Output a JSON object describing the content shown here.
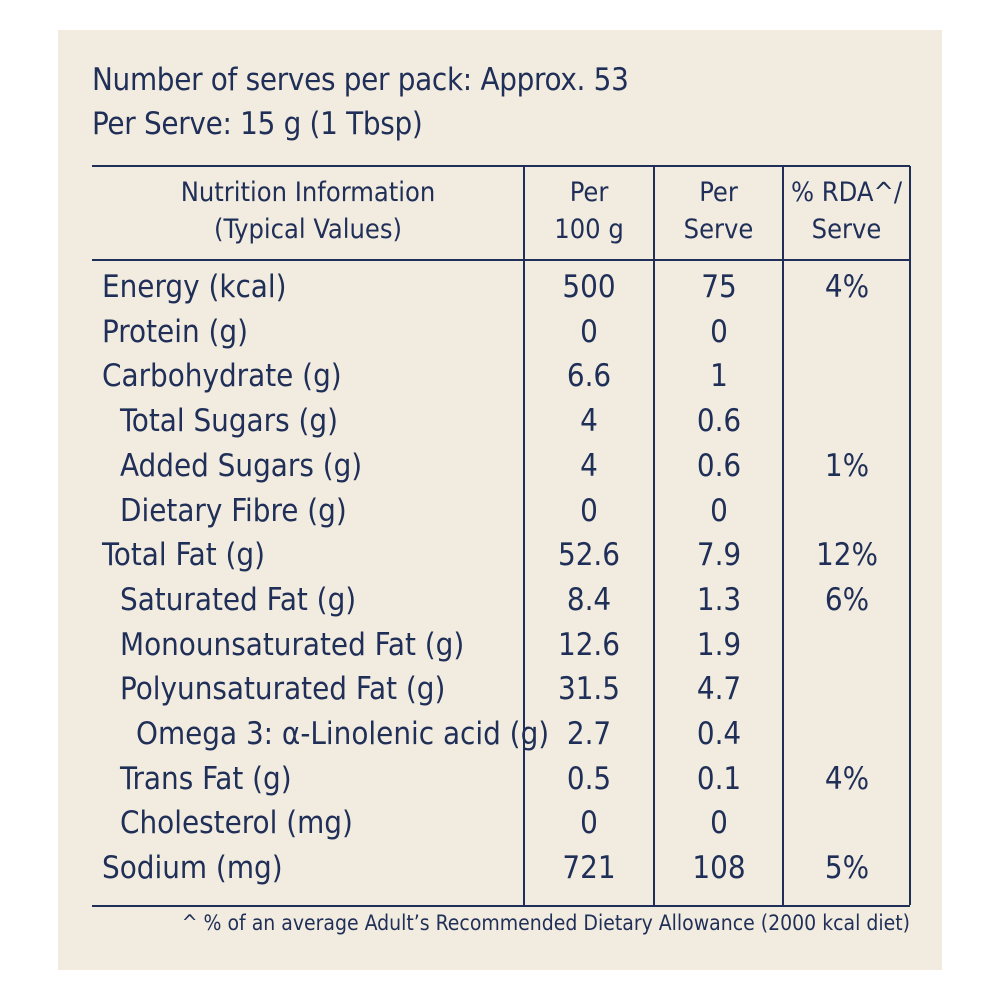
{
  "serves_per_pack": "Number of serves per pack: Approx. 53",
  "per_serve": "Per Serve: 15 g (1 Tbsp)",
  "header": {
    "col0_line1": "Nutrition Information",
    "col0_line2": "(Typical Values)",
    "col1_line1": "Per",
    "col1_line2": "100 g",
    "col2_line1": "Per",
    "col2_line2": "Serve",
    "col3_line1": "% RDA^/",
    "col3_line2": "Serve"
  },
  "rows": [
    {
      "label": "Energy (kcal)",
      "per100": "500",
      "perServe": "75",
      "rda": "4%",
      "indent": 0
    },
    {
      "label": "Protein (g)",
      "per100": "0",
      "perServe": "0",
      "rda": "",
      "indent": 0
    },
    {
      "label": "Carbohydrate (g)",
      "per100": "6.6",
      "perServe": "1",
      "rda": "",
      "indent": 0
    },
    {
      "label": "Total Sugars (g)",
      "per100": "4",
      "perServe": "0.6",
      "rda": "",
      "indent": 1
    },
    {
      "label": "Added Sugars (g)",
      "per100": "4",
      "perServe": "0.6",
      "rda": "1%",
      "indent": 1
    },
    {
      "label": "Dietary Fibre (g)",
      "per100": "0",
      "perServe": "0",
      "rda": "",
      "indent": 1
    },
    {
      "label": "Total Fat (g)",
      "per100": "52.6",
      "perServe": "7.9",
      "rda": "12%",
      "indent": 0
    },
    {
      "label": "Saturated Fat (g)",
      "per100": "8.4",
      "perServe": "1.3",
      "rda": "6%",
      "indent": 1
    },
    {
      "label": "Monounsaturated Fat (g)",
      "per100": "12.6",
      "perServe": "1.9",
      "rda": "",
      "indent": 1
    },
    {
      "label": "Polyunsaturated Fat (g)",
      "per100": "31.5",
      "perServe": "4.7",
      "rda": "",
      "indent": 1
    },
    {
      "label": "Omega 3: α-Linolenic acid (g)",
      "per100": "2.7",
      "perServe": "0.4",
      "rda": "",
      "indent": 2
    },
    {
      "label": "Trans Fat (g)",
      "per100": "0.5",
      "perServe": "0.1",
      "rda": "4%",
      "indent": 1
    },
    {
      "label": "Cholesterol (mg)",
      "per100": "0",
      "perServe": "0",
      "rda": "",
      "indent": 1
    },
    {
      "label": "Sodium (mg)",
      "per100": "721",
      "perServe": "108",
      "rda": "5%",
      "indent": 0
    }
  ],
  "footnote": "^ % of an average Adult’s Recommended Dietary Allowance (2000 kcal diet)",
  "colors": {
    "text": "#1f2f57",
    "panel": "#f2ebe0"
  }
}
